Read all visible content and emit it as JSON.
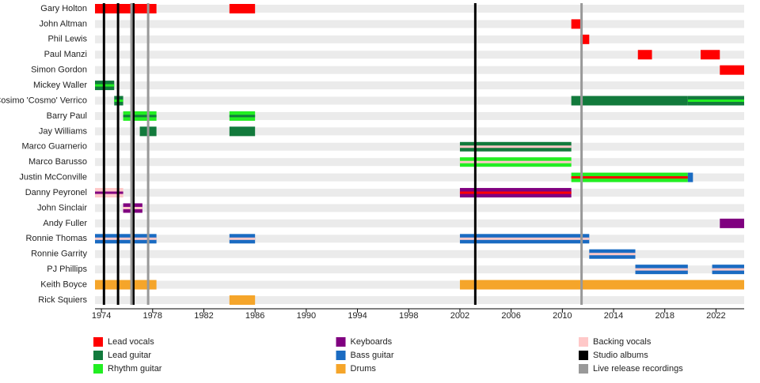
{
  "chart_data": {
    "type": "timeline",
    "xlim": [
      1973.5,
      2024.2
    ],
    "xticks": [
      1974,
      1978,
      1982,
      1986,
      1990,
      1994,
      1998,
      2002,
      2006,
      2010,
      2014,
      2018,
      2022
    ],
    "roles": [
      {
        "name": "Lead vocals",
        "color": "#ff0000"
      },
      {
        "name": "Lead guitar",
        "color": "#127a3c"
      },
      {
        "name": "Rhythm guitar",
        "color": "#22ee22"
      },
      {
        "name": "Keyboards",
        "color": "#800080"
      },
      {
        "name": "Bass guitar",
        "color": "#1a6bc2"
      },
      {
        "name": "Drums",
        "color": "#f5a52a"
      },
      {
        "name": "Backing vocals",
        "color": "#ffc8c8"
      }
    ],
    "markers": [
      {
        "name": "Studio albums",
        "color": "#000000",
        "x": [
          1974.2,
          1975.3,
          1976.5,
          2003.2
        ]
      },
      {
        "name": "Live release recordings",
        "color": "#999999",
        "x": [
          1976.35,
          1977.65,
          2011.5
        ]
      }
    ],
    "members": [
      {
        "name": "Gary Holton",
        "periods": [
          {
            "role": "Lead vocals",
            "start": 1973.5,
            "end": 1978.3
          },
          {
            "role": "Lead vocals",
            "start": 1984,
            "end": 1986
          }
        ]
      },
      {
        "name": "John Altman",
        "periods": [
          {
            "role": "Lead vocals",
            "start": 2010.7,
            "end": 2011.4
          }
        ]
      },
      {
        "name": "Phil Lewis",
        "periods": [
          {
            "role": "Lead vocals",
            "start": 2011.4,
            "end": 2012.1
          }
        ]
      },
      {
        "name": "Paul Manzi",
        "periods": [
          {
            "role": "Lead vocals",
            "start": 2015.9,
            "end": 2017
          },
          {
            "role": "Lead vocals",
            "start": 2020.8,
            "end": 2022.3
          }
        ]
      },
      {
        "name": "Simon Gordon",
        "periods": [
          {
            "role": "Lead vocals",
            "start": 2022.3,
            "end": 2024.2
          }
        ]
      },
      {
        "name": "Mickey Waller",
        "periods": [
          {
            "role": "Lead guitar",
            "stripe": "Rhythm guitar",
            "start": 1973.5,
            "end": 1975
          }
        ]
      },
      {
        "name": "Cosimo 'Cosmo' Verrico",
        "periods": [
          {
            "role": "Lead guitar",
            "stripe": "Rhythm guitar",
            "start": 1975,
            "end": 1975.7
          },
          {
            "role": "Lead guitar",
            "start": 2010.7,
            "end": 2019.8
          },
          {
            "role": "Lead guitar",
            "stripe": "Rhythm guitar",
            "start": 2019.8,
            "end": 2024.2
          }
        ]
      },
      {
        "name": "Barry Paul",
        "periods": [
          {
            "role": "Rhythm guitar",
            "stripe": "Lead guitar",
            "start": 1975.7,
            "end": 1978.3
          },
          {
            "role": "Rhythm guitar",
            "stripe": "Lead guitar",
            "start": 1984,
            "end": 1986
          }
        ]
      },
      {
        "name": "Jay Williams",
        "periods": [
          {
            "role": "Lead guitar",
            "start": 1977,
            "end": 1978.3
          },
          {
            "role": "Lead guitar",
            "start": 1984,
            "end": 1986
          }
        ]
      },
      {
        "name": "Marco Guarnerio",
        "periods": [
          {
            "role": "Lead guitar",
            "stripe": "Backing vocals",
            "start": 2002,
            "end": 2010.7
          }
        ]
      },
      {
        "name": "Marco Barusso",
        "periods": [
          {
            "role": "Rhythm guitar",
            "stripe": "Backing vocals",
            "start": 2002,
            "end": 2010.7
          }
        ]
      },
      {
        "name": "Justin McConville",
        "periods": [
          {
            "role": "Rhythm guitar",
            "stripe": "Lead vocals",
            "start": 2010.7,
            "end": 2019.8
          },
          {
            "role": "Bass guitar",
            "start": 2019.8,
            "end": 2020.2
          }
        ]
      },
      {
        "name": "Danny Peyronel",
        "periods": [
          {
            "role": "Backing vocals",
            "stripe": "Keyboards",
            "start": 1973.5,
            "end": 1975.7
          },
          {
            "role": "Keyboards",
            "stripe": "Lead vocals",
            "start": 2002,
            "end": 2010.7
          }
        ]
      },
      {
        "name": "John Sinclair",
        "periods": [
          {
            "role": "Keyboards",
            "stripe": "Backing vocals",
            "start": 1975.7,
            "end": 1977.2
          }
        ]
      },
      {
        "name": "Andy Fuller",
        "periods": [
          {
            "role": "Keyboards",
            "start": 2022.3,
            "end": 2024.2
          }
        ]
      },
      {
        "name": "Ronnie Thomas",
        "periods": [
          {
            "role": "Bass guitar",
            "stripe": "Backing vocals",
            "start": 1973.5,
            "end": 1978.3
          },
          {
            "role": "Bass guitar",
            "stripe": "Backing vocals",
            "start": 1984,
            "end": 1986
          },
          {
            "role": "Bass guitar",
            "stripe": "Backing vocals",
            "start": 2002,
            "end": 2012.1
          }
        ]
      },
      {
        "name": "Ronnie Garrity",
        "periods": [
          {
            "role": "Bass guitar",
            "stripe": "Backing vocals",
            "start": 2012.1,
            "end": 2015.7
          }
        ]
      },
      {
        "name": "PJ Phillips",
        "periods": [
          {
            "role": "Bass guitar",
            "stripe": "Backing vocals",
            "start": 2015.7,
            "end": 2019.8
          },
          {
            "role": "Bass guitar",
            "stripe": "Backing vocals",
            "start": 2021.7,
            "end": 2024.2
          }
        ]
      },
      {
        "name": "Keith Boyce",
        "periods": [
          {
            "role": "Drums",
            "start": 1973.5,
            "end": 1978.3
          },
          {
            "role": "Drums",
            "start": 2002,
            "end": 2024.2
          }
        ]
      },
      {
        "name": "Rick Squiers",
        "periods": [
          {
            "role": "Drums",
            "start": 1984,
            "end": 1986
          }
        ]
      }
    ]
  }
}
